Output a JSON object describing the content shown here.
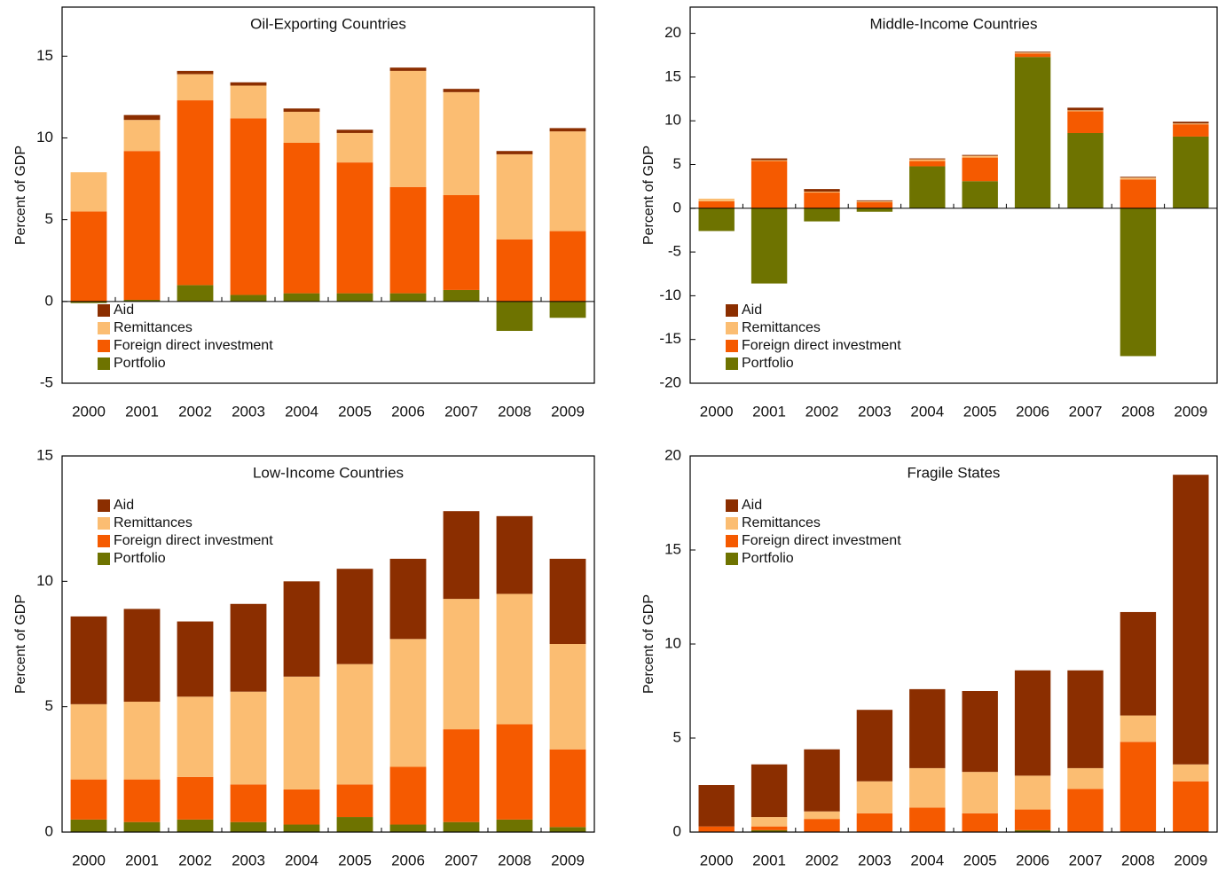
{
  "chart_data": [
    {
      "type": "bar",
      "stacked": true,
      "title": "Oil-Exporting Countries",
      "y_label": "Percent of GDP",
      "categories": [
        "2000",
        "2001",
        "2002",
        "2003",
        "2004",
        "2005",
        "2006",
        "2007",
        "2008",
        "2009"
      ],
      "ylim": [
        -5,
        18
      ],
      "yticks": [
        -5,
        0,
        5,
        10,
        15
      ],
      "legend": "lower left",
      "series": [
        {
          "name": "Aid",
          "color": "#8b2e00",
          "values": [
            0,
            0.3,
            0.2,
            0.2,
            0.2,
            0.2,
            0.2,
            0.2,
            0.2,
            0.2
          ]
        },
        {
          "name": "Remittances",
          "color": "#fbbd72",
          "values": [
            2.4,
            1.9,
            1.6,
            2.0,
            1.9,
            1.8,
            7.1,
            6.3,
            5.2,
            6.1
          ]
        },
        {
          "name": "Foreign direct investment",
          "color": "#f55a00",
          "values": [
            5.5,
            9.1,
            11.3,
            10.8,
            9.2,
            8.0,
            6.5,
            5.8,
            3.8,
            4.3
          ]
        },
        {
          "name": "Portfolio",
          "color": "#6e7300",
          "values": [
            -0.1,
            0.1,
            1.0,
            0.4,
            0.5,
            0.5,
            0.5,
            0.7,
            -1.8,
            -1.0
          ]
        }
      ]
    },
    {
      "type": "bar",
      "stacked": true,
      "title": "Middle-Income Countries",
      "y_label": "Percent of GDP",
      "categories": [
        "2000",
        "2001",
        "2002",
        "2003",
        "2004",
        "2005",
        "2006",
        "2007",
        "2008",
        "2009"
      ],
      "ylim": [
        -20,
        23
      ],
      "yticks": [
        -20,
        -15,
        -10,
        -5,
        0,
        5,
        10,
        15,
        20
      ],
      "legend": "lower left",
      "series": [
        {
          "name": "Aid",
          "color": "#8b2e00",
          "values": [
            0,
            0.2,
            0.3,
            0.1,
            0.1,
            0.1,
            0.1,
            0.3,
            0.1,
            0.2
          ]
        },
        {
          "name": "Remittances",
          "color": "#fbbd72",
          "values": [
            0.3,
            0.1,
            0.1,
            0.1,
            0.2,
            0.2,
            0.1,
            0.1,
            0.2,
            0.1
          ]
        },
        {
          "name": "Foreign direct investment",
          "color": "#f55a00",
          "values": [
            0.8,
            5.4,
            1.8,
            0.7,
            0.6,
            2.7,
            0.4,
            2.5,
            3.3,
            1.4
          ]
        },
        {
          "name": "Portfolio",
          "color": "#6e7300",
          "values": [
            -2.6,
            -8.6,
            -1.5,
            -0.4,
            4.8,
            3.1,
            17.3,
            8.6,
            -16.9,
            8.2
          ]
        }
      ]
    },
    {
      "type": "bar",
      "stacked": true,
      "title": "Low-Income Countries",
      "y_label": "Percent of GDP",
      "categories": [
        "2000",
        "2001",
        "2002",
        "2003",
        "2004",
        "2005",
        "2006",
        "2007",
        "2008",
        "2009"
      ],
      "ylim": [
        0,
        15
      ],
      "yticks": [
        0,
        5,
        10,
        15
      ],
      "legend": "upper left",
      "series": [
        {
          "name": "Aid",
          "color": "#8b2e00",
          "values": [
            3.5,
            3.7,
            3.0,
            3.5,
            3.8,
            3.8,
            3.2,
            3.5,
            3.1,
            3.4
          ]
        },
        {
          "name": "Remittances",
          "color": "#fbbd72",
          "values": [
            3.0,
            3.1,
            3.2,
            3.7,
            4.5,
            4.8,
            5.1,
            5.2,
            5.2,
            4.2
          ]
        },
        {
          "name": "Foreign direct investment",
          "color": "#f55a00",
          "values": [
            1.6,
            1.7,
            1.7,
            1.5,
            1.4,
            1.3,
            2.3,
            3.7,
            3.8,
            3.1
          ]
        },
        {
          "name": "Portfolio",
          "color": "#6e7300",
          "values": [
            0.5,
            0.4,
            0.5,
            0.4,
            0.3,
            0.6,
            0.3,
            0.4,
            0.5,
            0.2
          ]
        }
      ]
    },
    {
      "type": "bar",
      "stacked": true,
      "title": "Fragile States",
      "y_label": "Percent of GDP",
      "categories": [
        "2000",
        "2001",
        "2002",
        "2003",
        "2004",
        "2005",
        "2006",
        "2007",
        "2008",
        "2009"
      ],
      "ylim": [
        0,
        20
      ],
      "yticks": [
        0,
        5,
        10,
        15,
        20
      ],
      "legend": "upper left",
      "series": [
        {
          "name": "Aid",
          "color": "#8b2e00",
          "values": [
            2.2,
            2.8,
            3.3,
            3.8,
            4.2,
            4.3,
            5.6,
            5.2,
            5.5,
            15.4
          ]
        },
        {
          "name": "Remittances",
          "color": "#fbbd72",
          "values": [
            0,
            0.5,
            0.4,
            1.7,
            2.1,
            2.2,
            1.8,
            1.1,
            1.4,
            0.9
          ]
        },
        {
          "name": "Foreign direct investment",
          "color": "#f55a00",
          "values": [
            0.3,
            0.2,
            0.7,
            1.0,
            1.3,
            1.0,
            1.1,
            2.3,
            4.8,
            2.7
          ]
        },
        {
          "name": "Portfolio",
          "color": "#6e7300",
          "values": [
            0,
            0.1,
            0,
            0,
            0,
            0,
            0.1,
            0,
            0,
            0
          ]
        }
      ]
    }
  ]
}
